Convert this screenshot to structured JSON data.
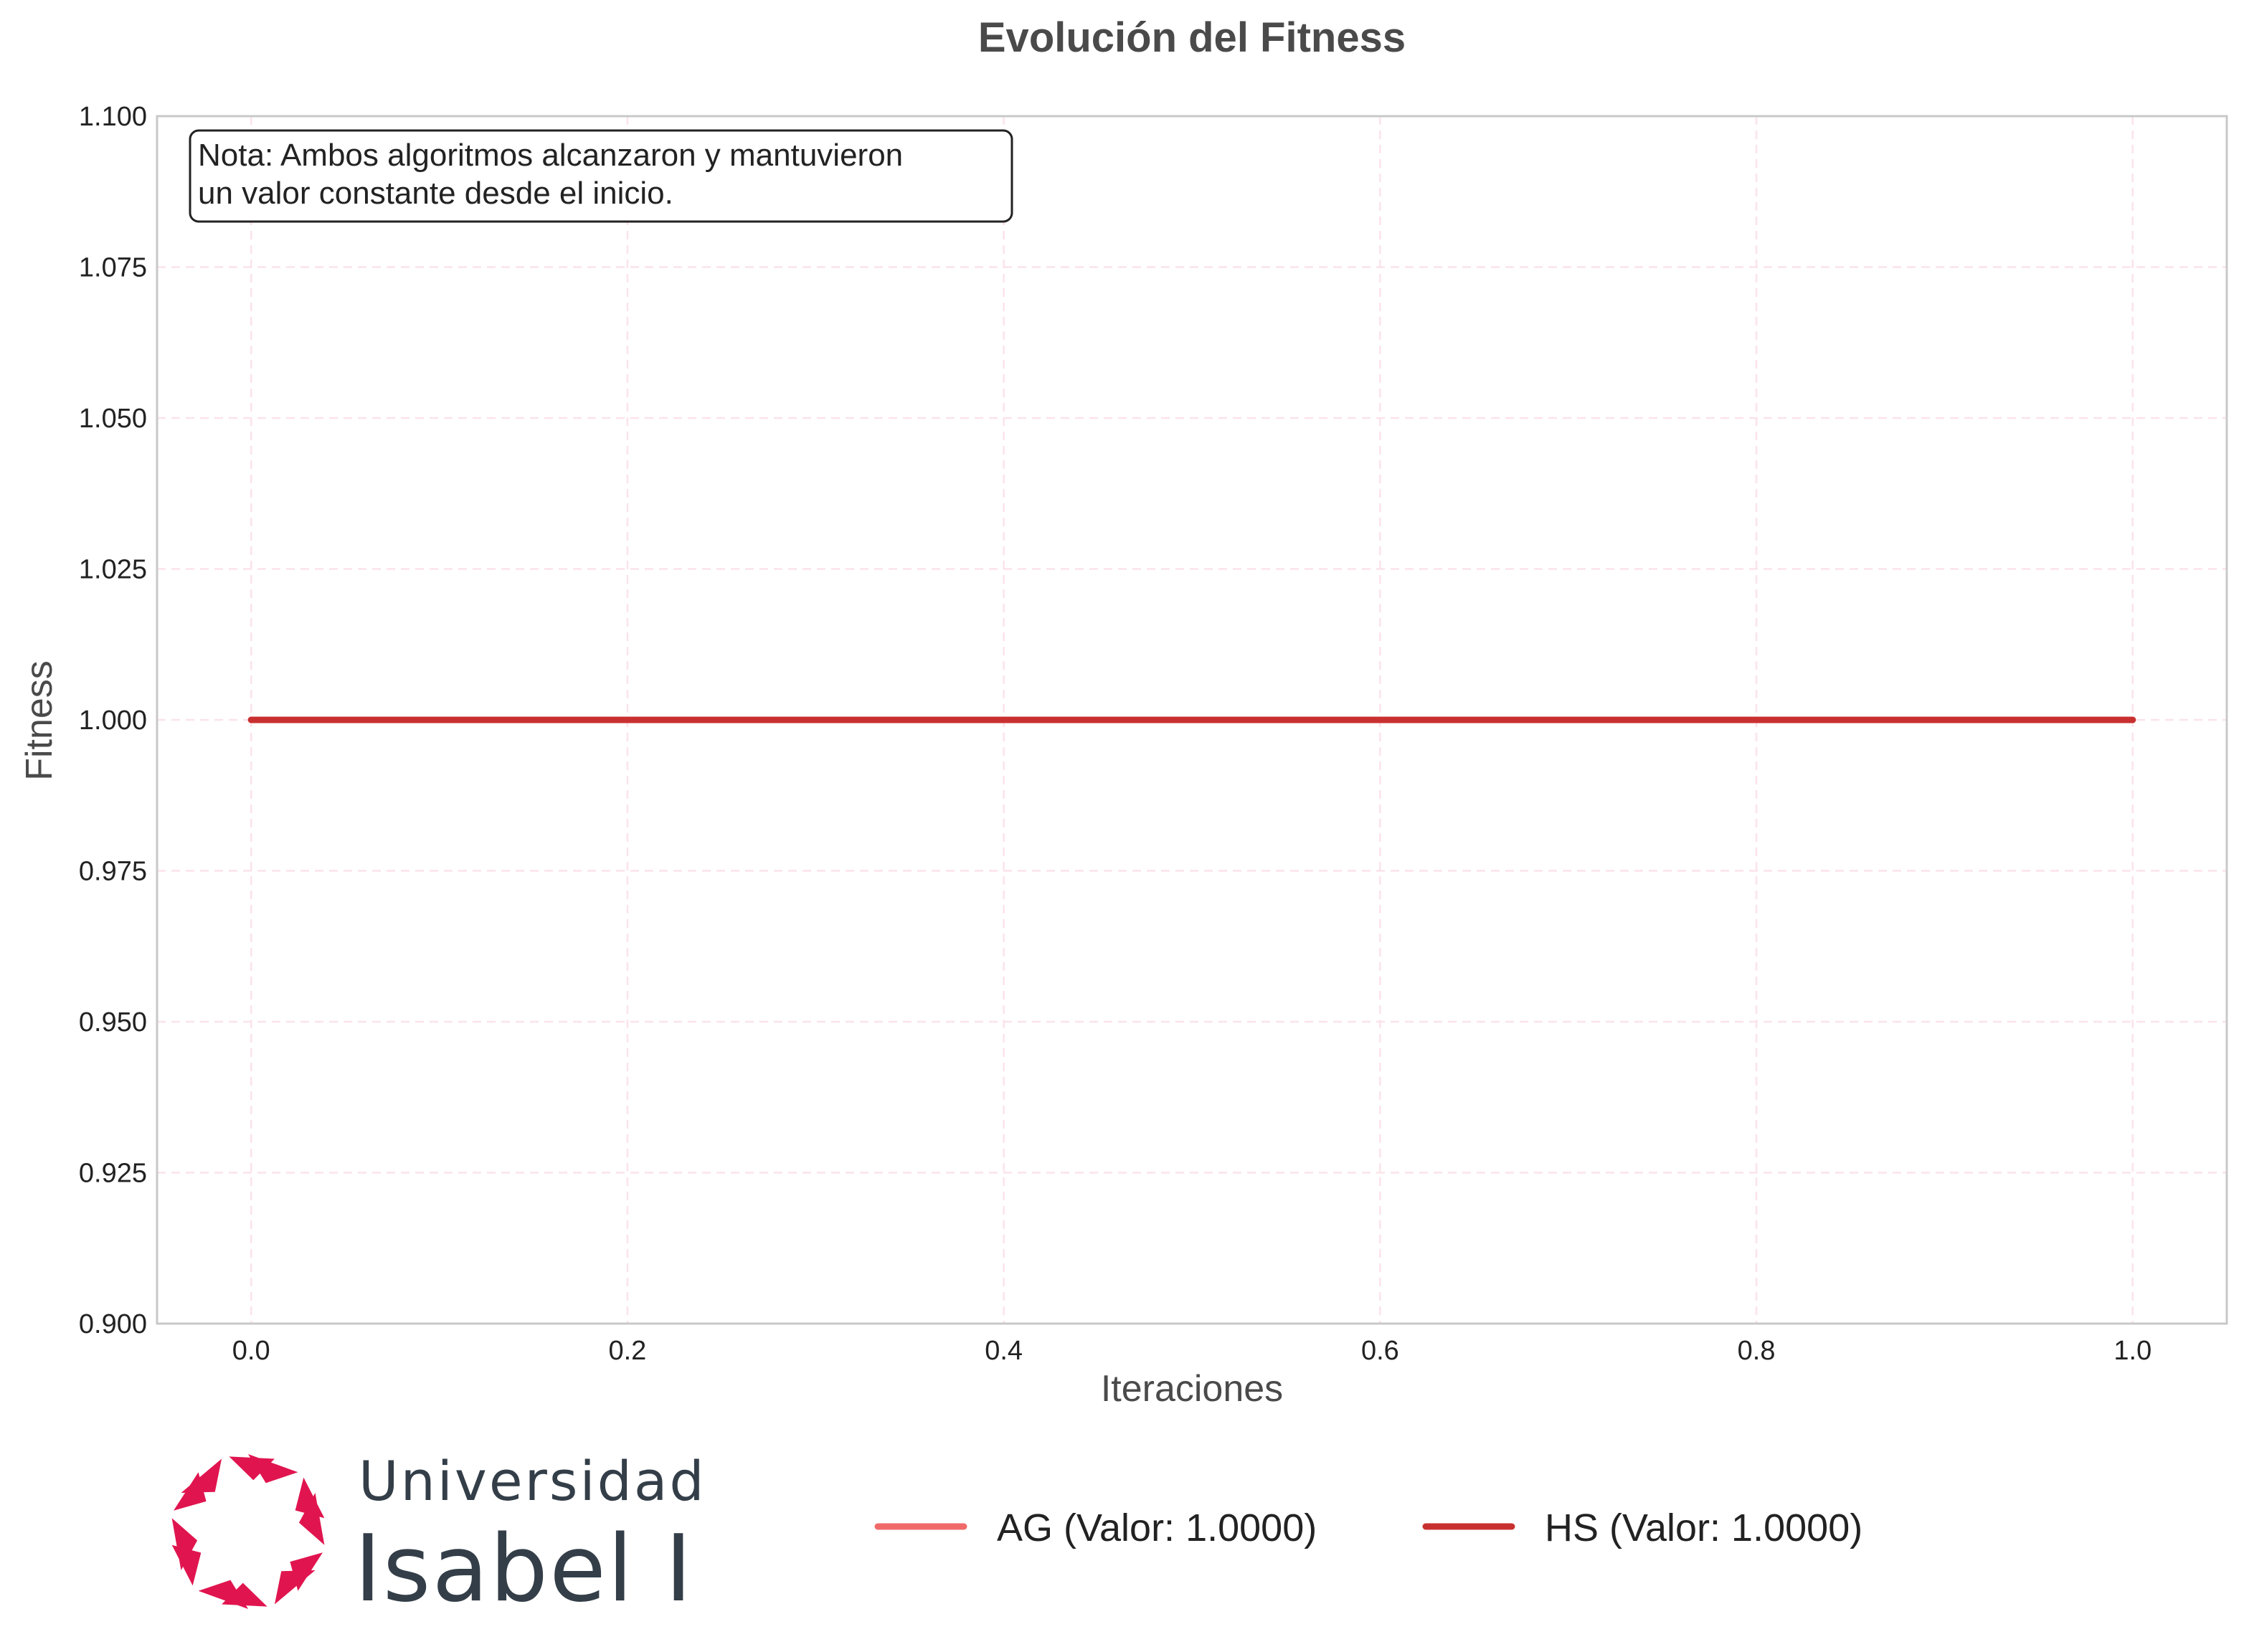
{
  "chart_data": {
    "type": "line",
    "title": "Evolución del Fitness",
    "xlabel": "Iteraciones",
    "ylabel": "Fitness",
    "xlim": [
      -0.05,
      1.05
    ],
    "ylim": [
      0.9,
      1.1
    ],
    "xticks": [
      "0.0",
      "0.2",
      "0.4",
      "0.6",
      "0.8",
      "1.0"
    ],
    "xtick_values": [
      0.0,
      0.2,
      0.4,
      0.6,
      0.8,
      1.0
    ],
    "yticks": [
      "0.900",
      "0.925",
      "0.950",
      "0.975",
      "1.000",
      "1.025",
      "1.050",
      "1.075",
      "1.100"
    ],
    "ytick_values": [
      0.9,
      0.925,
      0.95,
      0.975,
      1.0,
      1.025,
      1.05,
      1.075,
      1.1
    ],
    "grid": true,
    "legend_position": "bottom",
    "series": [
      {
        "name": "AG (Valor: 1.0000)",
        "color": "#f06a6a",
        "x": [
          0,
          1
        ],
        "y": [
          1.0,
          1.0
        ]
      },
      {
        "name": "HS (Valor: 1.0000)",
        "color": "#c8302f",
        "x": [
          0,
          1
        ],
        "y": [
          1.0,
          1.0
        ]
      }
    ],
    "annotation": {
      "line1": "Nota: Ambos algoritmos alcanzaron y mantuvieron",
      "line2": "un valor constante desde el inicio.",
      "position": "top-left"
    }
  },
  "logo": {
    "line1": "Universidad",
    "line2": "Isabel I",
    "color": "#e0154f",
    "icon": "hexagram-logo-icon"
  }
}
